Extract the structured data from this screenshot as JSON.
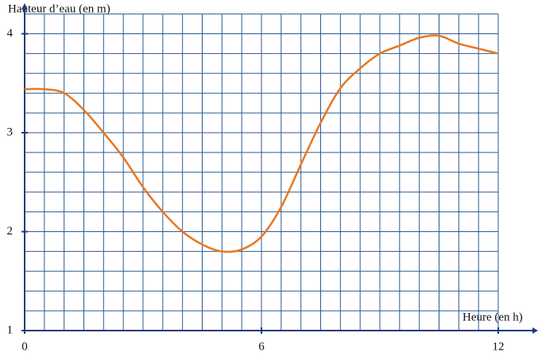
{
  "chart_data": {
    "type": "line",
    "y_label": "Hauteur d’eau (en m)",
    "x_label": "Heure (en h)",
    "x": [
      0,
      0.5,
      1,
      1.5,
      2,
      2.5,
      3,
      3.5,
      4,
      4.5,
      5,
      5.5,
      6,
      6.5,
      7,
      7.5,
      8,
      8.5,
      9,
      9.5,
      10,
      10.5,
      11,
      11.5,
      12
    ],
    "series": [
      {
        "name": "Hauteur",
        "color": "#e8771f",
        "values": [
          3.44,
          3.44,
          3.4,
          3.23,
          3.0,
          2.75,
          2.45,
          2.2,
          2.0,
          1.87,
          1.8,
          1.82,
          1.95,
          2.25,
          2.68,
          3.1,
          3.45,
          3.65,
          3.8,
          3.88,
          3.96,
          3.98,
          3.9,
          3.85,
          3.8
        ]
      }
    ],
    "xlim": [
      0,
      12
    ],
    "xticks": [
      0,
      6,
      12
    ],
    "ylim": [
      1,
      4.2
    ],
    "yticks": [
      1,
      2,
      3,
      4
    ],
    "grid": {
      "x_step": 0.5,
      "y_step": 0.2
    }
  }
}
